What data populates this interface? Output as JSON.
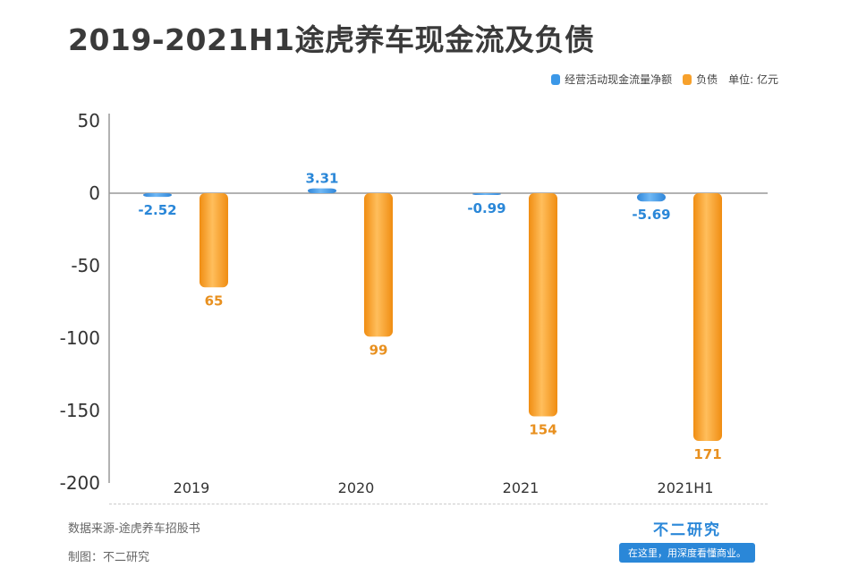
{
  "title": "2019-2021H1途虎养车现金流及负债",
  "legend": {
    "series1": "经营活动现金流量净额",
    "series2": "负债",
    "unit": "单位: 亿元"
  },
  "colors": {
    "cash": "#3b98e8",
    "debt": "#f7a12c",
    "axis": "#999999",
    "text": "#333333"
  },
  "chart_data": {
    "type": "bar",
    "categories": [
      "2019",
      "2020",
      "2021",
      "2021H1"
    ],
    "series": [
      {
        "name": "经营活动现金流量净额",
        "values": [
          -2.52,
          3.31,
          -0.99,
          -5.69
        ],
        "labels": [
          "-2.52",
          "3.31",
          "-0.99",
          "-5.69"
        ]
      },
      {
        "name": "负债",
        "values": [
          -65,
          -99,
          -154,
          -171
        ],
        "labels": [
          "65",
          "99",
          "154",
          "171"
        ]
      }
    ],
    "yticks": [
      "50",
      "0",
      "-50",
      "-100",
      "-150",
      "-200"
    ],
    "ylim": [
      -200,
      50
    ],
    "xlabel": "",
    "ylabel": ""
  },
  "footer": {
    "source": "数据来源-途虎养车招股书",
    "made_by": "制图：不二研究",
    "brand_name": "不二研究",
    "brand_slogan": "在这里，用深度看懂商业。"
  }
}
